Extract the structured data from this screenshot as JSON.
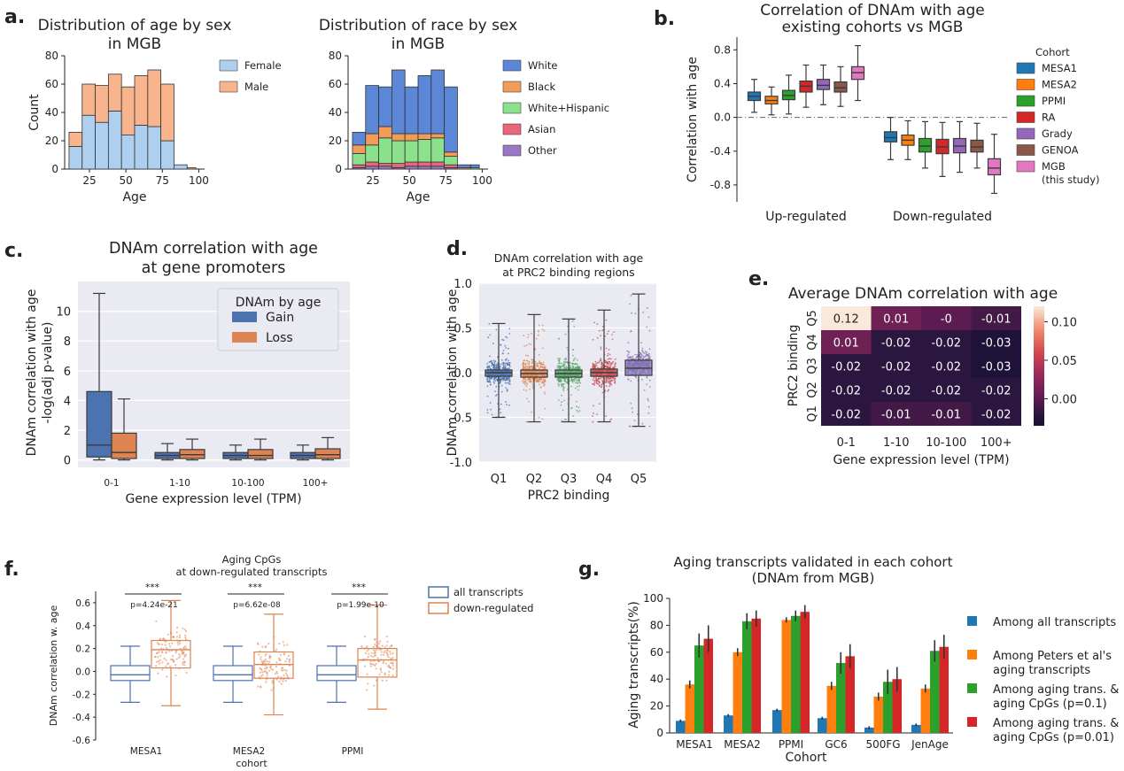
{
  "panel_labels": {
    "a": "a.",
    "b": "b.",
    "c": "c.",
    "d": "d.",
    "e": "e.",
    "f": "f.",
    "g": "g."
  },
  "chart_data": [
    {
      "id": "a1",
      "type": "bar",
      "stacked": true,
      "title_lines": [
        "Distribution of age by sex",
        "in MGB"
      ],
      "xlabel": "Age",
      "ylabel": "Count",
      "xlim": [
        8,
        104
      ],
      "ylim": [
        0,
        80
      ],
      "xticks": [
        "25",
        "50",
        "75",
        "100"
      ],
      "yticks": [
        "0",
        "20",
        "40",
        "60",
        "80"
      ],
      "bin_edges": [
        11,
        20,
        29,
        38,
        47,
        56,
        65,
        74,
        83,
        92,
        98
      ],
      "series": [
        {
          "name": "Female",
          "color": "#aed0ee",
          "values": [
            16,
            38,
            33,
            41,
            24,
            31,
            30,
            20,
            3,
            0
          ]
        },
        {
          "name": "Male",
          "color": "#f8b48c",
          "values": [
            10,
            22,
            26,
            26,
            34,
            35,
            40,
            40,
            0,
            1
          ]
        }
      ],
      "legend_position": "right"
    },
    {
      "id": "a2",
      "type": "bar",
      "stacked": true,
      "title_lines": [
        "Distribution of race by sex",
        "in MGB"
      ],
      "xlabel": "Age",
      "ylabel": "",
      "xlim": [
        8,
        104
      ],
      "ylim": [
        0,
        80
      ],
      "xticks": [
        "25",
        "50",
        "75",
        "100"
      ],
      "yticks": [
        "0",
        "20",
        "40",
        "60",
        "80"
      ],
      "bin_edges": [
        11,
        20,
        29,
        38,
        47,
        56,
        65,
        74,
        83,
        92,
        98
      ],
      "series": [
        {
          "name": "Other",
          "color": "#9a78c8",
          "values": [
            1,
            2,
            2,
            1,
            2,
            2,
            2,
            1,
            0,
            0
          ]
        },
        {
          "name": "Asian",
          "color": "#e8687a",
          "values": [
            2,
            3,
            2,
            3,
            3,
            3,
            3,
            2,
            0,
            0
          ]
        },
        {
          "name": "White+Hispanic",
          "color": "#8ce28c",
          "values": [
            8,
            12,
            18,
            16,
            15,
            16,
            17,
            6,
            0,
            1
          ]
        },
        {
          "name": "Black",
          "color": "#f39c58",
          "values": [
            6,
            8,
            8,
            5,
            5,
            4,
            3,
            3,
            1,
            0
          ]
        },
        {
          "name": "White",
          "color": "#5b87d6",
          "values": [
            9,
            34,
            28,
            45,
            33,
            41,
            45,
            46,
            2,
            2
          ]
        }
      ],
      "legend_order": [
        "White",
        "Black",
        "White+Hispanic",
        "Asian",
        "Other"
      ],
      "legend_position": "right"
    },
    {
      "id": "b",
      "type": "box",
      "title_lines": [
        "Correlation of DNAm with age",
        "existing cohorts vs MGB"
      ],
      "xlabel": "",
      "ylabel": "Correlation with age",
      "ylim": [
        -1.0,
        0.95
      ],
      "yticks": [
        "0.8",
        "0.4",
        "0.0",
        "-0.4",
        "-0.8"
      ],
      "categories": [
        "Up-regulated",
        "Down-regulated"
      ],
      "legend_title": "Cohort",
      "series": [
        {
          "name": "MESA1",
          "color": "#1f77b4",
          "boxes": [
            {
              "q1": 0.2,
              "median": 0.25,
              "q3": 0.3,
              "lo": 0.06,
              "hi": 0.45
            },
            {
              "q1": -0.29,
              "median": -0.24,
              "q3": -0.17,
              "lo": -0.5,
              "hi": 0.0
            }
          ]
        },
        {
          "name": "MESA2",
          "color": "#ff7f0e",
          "boxes": [
            {
              "q1": 0.16,
              "median": 0.2,
              "q3": 0.25,
              "lo": 0.03,
              "hi": 0.36
            },
            {
              "q1": -0.33,
              "median": -0.27,
              "q3": -0.21,
              "lo": -0.5,
              "hi": -0.04
            }
          ]
        },
        {
          "name": "PPMI",
          "color": "#2ca02c",
          "boxes": [
            {
              "q1": 0.21,
              "median": 0.26,
              "q3": 0.32,
              "lo": 0.04,
              "hi": 0.5
            },
            {
              "q1": -0.41,
              "median": -0.34,
              "q3": -0.25,
              "lo": -0.6,
              "hi": -0.05
            }
          ]
        },
        {
          "name": "RA",
          "color": "#d62728",
          "boxes": [
            {
              "q1": 0.3,
              "median": 0.37,
              "q3": 0.43,
              "lo": 0.12,
              "hi": 0.62
            },
            {
              "q1": -0.43,
              "median": -0.35,
              "q3": -0.26,
              "lo": -0.7,
              "hi": -0.06
            }
          ]
        },
        {
          "name": "Grady",
          "color": "#9467bd",
          "boxes": [
            {
              "q1": 0.33,
              "median": 0.38,
              "q3": 0.45,
              "lo": 0.15,
              "hi": 0.62
            },
            {
              "q1": -0.42,
              "median": -0.34,
              "q3": -0.25,
              "lo": -0.65,
              "hi": -0.05
            }
          ]
        },
        {
          "name": "GENOA",
          "color": "#8c564b",
          "boxes": [
            {
              "q1": 0.3,
              "median": 0.35,
              "q3": 0.42,
              "lo": 0.13,
              "hi": 0.6
            },
            {
              "q1": -0.41,
              "median": -0.35,
              "q3": -0.27,
              "lo": -0.6,
              "hi": -0.07
            }
          ]
        },
        {
          "name": "MGB\n(this study)",
          "color": "#e377c2",
          "boxes": [
            {
              "q1": 0.45,
              "median": 0.53,
              "q3": 0.6,
              "lo": 0.2,
              "hi": 0.85
            },
            {
              "q1": -0.68,
              "median": -0.6,
              "q3": -0.49,
              "lo": -0.9,
              "hi": -0.2
            }
          ]
        }
      ],
      "legend_position": "right"
    },
    {
      "id": "c",
      "type": "box",
      "title_lines": [
        "DNAm correlation with age",
        "at gene promoters"
      ],
      "xlabel": "Gene expression level (TPM)",
      "ylabel_lines": [
        "DNAm correlation with age",
        "-log(adj p-value)"
      ],
      "ylim": [
        -0.5,
        12
      ],
      "yticks": [
        "0",
        "2",
        "4",
        "6",
        "8",
        "10"
      ],
      "categories": [
        "0-1",
        "1-10",
        "10-100",
        "100+"
      ],
      "legend_title": "DNAm by age",
      "series": [
        {
          "name": "Gain",
          "color": "#4c72b0",
          "boxes": [
            {
              "q1": 0.2,
              "median": 1.0,
              "q3": 4.6,
              "lo": 0.0,
              "hi": 11.2
            },
            {
              "q1": 0.1,
              "median": 0.3,
              "q3": 0.5,
              "lo": 0.0,
              "hi": 1.1
            },
            {
              "q1": 0.1,
              "median": 0.3,
              "q3": 0.5,
              "lo": 0.0,
              "hi": 1.0
            },
            {
              "q1": 0.1,
              "median": 0.3,
              "q3": 0.5,
              "lo": 0.0,
              "hi": 1.0
            }
          ]
        },
        {
          "name": "Loss",
          "color": "#dd8452",
          "boxes": [
            {
              "q1": 0.1,
              "median": 0.5,
              "q3": 1.8,
              "lo": 0.0,
              "hi": 4.1
            },
            {
              "q1": 0.1,
              "median": 0.35,
              "q3": 0.7,
              "lo": 0.0,
              "hi": 1.4
            },
            {
              "q1": 0.1,
              "median": 0.3,
              "q3": 0.7,
              "lo": 0.0,
              "hi": 1.4
            },
            {
              "q1": 0.1,
              "median": 0.35,
              "q3": 0.75,
              "lo": 0.0,
              "hi": 1.5
            }
          ]
        }
      ],
      "legend_position": "top-right"
    },
    {
      "id": "d",
      "type": "scatter",
      "title_lines": [
        "DNAm correlation with age",
        "at PRC2 binding regions"
      ],
      "xlabel": "PRC2 binding",
      "ylabel": "DNAm correlation with age",
      "ylim": [
        -1.0,
        1.0
      ],
      "yticks": [
        "1.0",
        "0.5",
        "0.0",
        "-0.5",
        "-1.0"
      ],
      "categories": [
        "Q1",
        "Q2",
        "Q3",
        "Q4",
        "Q5"
      ],
      "colors": [
        "#4c72b0",
        "#dd8452",
        "#55a868",
        "#c44e52",
        "#8172b3"
      ],
      "boxes": [
        {
          "q1": -0.04,
          "median": 0.0,
          "q3": 0.03,
          "lo": -0.5,
          "hi": 0.55
        },
        {
          "q1": -0.05,
          "median": -0.01,
          "q3": 0.03,
          "lo": -0.55,
          "hi": 0.65
        },
        {
          "q1": -0.05,
          "median": -0.01,
          "q3": 0.03,
          "lo": -0.55,
          "hi": 0.6
        },
        {
          "q1": -0.04,
          "median": 0.0,
          "q3": 0.04,
          "lo": -0.55,
          "hi": 0.7
        },
        {
          "q1": -0.03,
          "median": 0.05,
          "q3": 0.14,
          "lo": -0.6,
          "hi": 0.88
        }
      ]
    },
    {
      "id": "e",
      "type": "heatmap",
      "title": "Average DNAm correlation with age",
      "xlabel": "Gene expression level (TPM)",
      "ylabel": "PRC2 binding",
      "x_categories": [
        "0-1",
        "1-10",
        "10-100",
        "100+"
      ],
      "y_categories": [
        "Q5",
        "Q4",
        "Q3",
        "Q2",
        "Q1"
      ],
      "values": [
        [
          0.12,
          0.01,
          -0.0,
          -0.01
        ],
        [
          0.01,
          -0.02,
          -0.02,
          -0.03
        ],
        [
          -0.02,
          -0.02,
          -0.02,
          -0.03
        ],
        [
          -0.02,
          -0.02,
          -0.02,
          -0.02
        ],
        [
          -0.02,
          -0.01,
          -0.01,
          -0.02
        ]
      ],
      "cell_labels": [
        [
          "0.12",
          "0.01",
          "-0",
          "-0.01"
        ],
        [
          "0.01",
          "-0.02",
          "-0.02",
          "-0.03"
        ],
        [
          "-0.02",
          "-0.02",
          "-0.02",
          "-0.03"
        ],
        [
          "-0.02",
          "-0.02",
          "-0.02",
          "-0.02"
        ],
        [
          "-0.02",
          "-0.01",
          "-0.01",
          "-0.02"
        ]
      ],
      "colorbar_ticks": [
        "0.10",
        "0.05",
        "0.00"
      ],
      "vmin": -0.035,
      "vmax": 0.12
    },
    {
      "id": "f",
      "type": "box",
      "title_lines": [
        "Aging CpGs",
        "at down-regulated transcripts"
      ],
      "xlabel": "cohort",
      "ylabel": "DNAm correlation w. age",
      "ylim": [
        -0.6,
        0.7
      ],
      "yticks": [
        "0.6",
        "0.4",
        "0.2",
        "0.0",
        "-0.2",
        "-0.4",
        "-0.6"
      ],
      "categories": [
        "MESA1",
        "MESA2",
        "PPMI"
      ],
      "significance": [
        "***",
        "***",
        "***"
      ],
      "pvalues": [
        "p=4.24e-21",
        "p=6.62e-08",
        "p=1.99e-10"
      ],
      "series": [
        {
          "name": "all transcripts",
          "color": "#4c72b0",
          "boxes": [
            {
              "q1": -0.08,
              "median": -0.03,
              "q3": 0.05,
              "lo": -0.27,
              "hi": 0.22
            },
            {
              "q1": -0.08,
              "median": -0.03,
              "q3": 0.05,
              "lo": -0.27,
              "hi": 0.22
            },
            {
              "q1": -0.08,
              "median": -0.03,
              "q3": 0.05,
              "lo": -0.27,
              "hi": 0.22
            }
          ]
        },
        {
          "name": "down-regulated",
          "color": "#dd8452",
          "boxes": [
            {
              "q1": 0.03,
              "median": 0.19,
              "q3": 0.27,
              "lo": -0.3,
              "hi": 0.62
            },
            {
              "q1": -0.06,
              "median": 0.06,
              "q3": 0.17,
              "lo": -0.38,
              "hi": 0.5
            },
            {
              "q1": -0.05,
              "median": 0.1,
              "q3": 0.2,
              "lo": -0.33,
              "hi": 0.58
            }
          ]
        }
      ],
      "legend_position": "right"
    },
    {
      "id": "g",
      "type": "bar",
      "title_lines": [
        "Aging transcripts validated in each cohort",
        "(DNAm from MGB)"
      ],
      "xlabel": "Cohort",
      "ylabel": "Aging transcripts(%)",
      "ylim": [
        0,
        100
      ],
      "yticks": [
        "0",
        "20",
        "40",
        "60",
        "80",
        "100"
      ],
      "categories": [
        "MESA1",
        "MESA2",
        "PPMI",
        "GC6",
        "500FG",
        "JenAge"
      ],
      "series": [
        {
          "name": "Among all transcripts",
          "color": "#1f77b4",
          "values": [
            9,
            13,
            17,
            11,
            4,
            6
          ],
          "err": [
            1,
            1,
            1,
            1,
            1,
            1
          ]
        },
        {
          "name": "Among Peters et al's\naging transcripts",
          "color": "#ff7f0e",
          "values": [
            36,
            60,
            84,
            35,
            27,
            33
          ],
          "err": [
            3,
            3,
            2,
            3,
            3,
            3
          ]
        },
        {
          "name": "Among aging trans. &\naging CpGs (p=0.1)",
          "color": "#2ca02c",
          "values": [
            65,
            83,
            87,
            52,
            38,
            61
          ],
          "err": [
            9,
            6,
            4,
            8,
            9,
            8
          ]
        },
        {
          "name": "Among aging trans. &\naging CpGs (p=0.01)",
          "color": "#d62728",
          "values": [
            70,
            85,
            90,
            57,
            40,
            64
          ],
          "err": [
            10,
            6,
            5,
            9,
            9,
            9
          ]
        }
      ],
      "legend_position": "right"
    }
  ]
}
